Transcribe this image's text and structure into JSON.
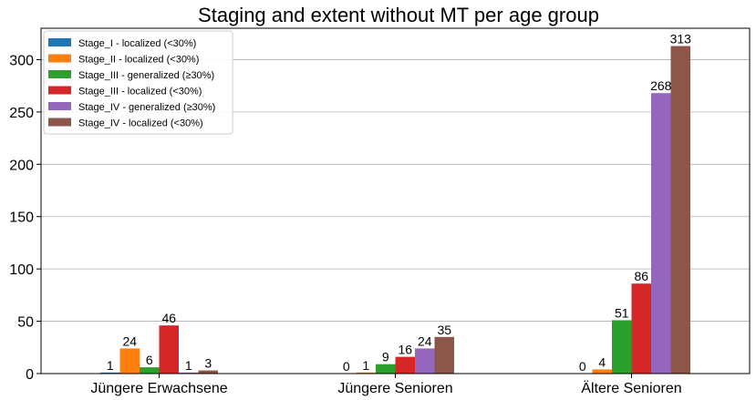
{
  "chart_data": {
    "type": "bar",
    "title": "Staging and extent without MT per age group",
    "xlabel": "",
    "ylabel": "",
    "categories": [
      "Jüngere Erwachsene",
      "Jüngere Senioren",
      "Ältere Senioren"
    ],
    "series": [
      {
        "name": "Stage_I - localized (<30%)",
        "values": [
          1,
          0,
          0
        ],
        "color": "#1f77b4"
      },
      {
        "name": "Stage_II - localized (<30%)",
        "values": [
          24,
          1,
          4
        ],
        "color": "#ff7f0e"
      },
      {
        "name": "Stage_III - generalized (≥30%)",
        "values": [
          6,
          9,
          51
        ],
        "color": "#2ca02c"
      },
      {
        "name": "Stage_III - localized (<30%)",
        "values": [
          46,
          16,
          86
        ],
        "color": "#d62728"
      },
      {
        "name": "Stage_IV - generalized (≥30%)",
        "values": [
          1,
          24,
          268
        ],
        "color": "#9467bd"
      },
      {
        "name": "Stage_IV - localized (<30%)",
        "values": [
          3,
          35,
          313
        ],
        "color": "#8c564b"
      }
    ],
    "ylim": [
      0,
      330
    ],
    "yticks": [
      0,
      50,
      100,
      150,
      200,
      250,
      300
    ],
    "grid": "horizontal",
    "legend_position": "top-left",
    "data_labels": true
  }
}
